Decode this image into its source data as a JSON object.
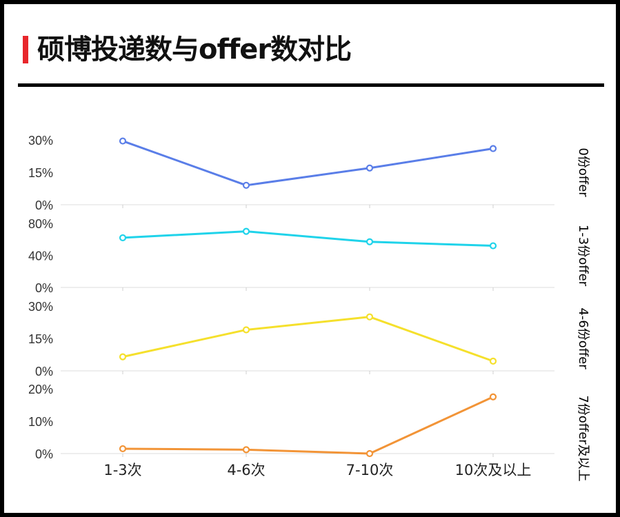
{
  "header": {
    "title": "硕博投递数与offer数对比",
    "accent_color": "#e8262b"
  },
  "chart_data": {
    "type": "line",
    "categories": [
      "1-3次",
      "4-6次",
      "7-10次",
      "10次及以上"
    ],
    "panels": [
      {
        "label": "0份offer",
        "color": "#5a7ee8",
        "ylim": [
          0,
          30
        ],
        "yticks": [
          "0%",
          "15%",
          "30%"
        ],
        "yvals": [
          0,
          15,
          30
        ],
        "values": [
          29.5,
          9,
          17,
          26
        ]
      },
      {
        "label": "1-3份offer",
        "color": "#1fd3ea",
        "ylim": [
          0,
          80
        ],
        "yticks": [
          "0%",
          "40%",
          "80%"
        ],
        "yvals": [
          0,
          40,
          80
        ],
        "values": [
          62,
          70,
          57,
          52
        ]
      },
      {
        "label": "4-6份offer",
        "color": "#f5e02c",
        "ylim": [
          0,
          30
        ],
        "yticks": [
          "0%",
          "15%",
          "30%"
        ],
        "yvals": [
          0,
          15,
          30
        ],
        "values": [
          6.5,
          19,
          25,
          4.5
        ]
      },
      {
        "label": "7份offer及以上",
        "color": "#f29437",
        "ylim": [
          0,
          20
        ],
        "yticks": [
          "0%",
          "10%",
          "20%"
        ],
        "yvals": [
          0,
          10,
          20
        ],
        "values": [
          1.5,
          1.2,
          0,
          17.5
        ]
      }
    ]
  }
}
